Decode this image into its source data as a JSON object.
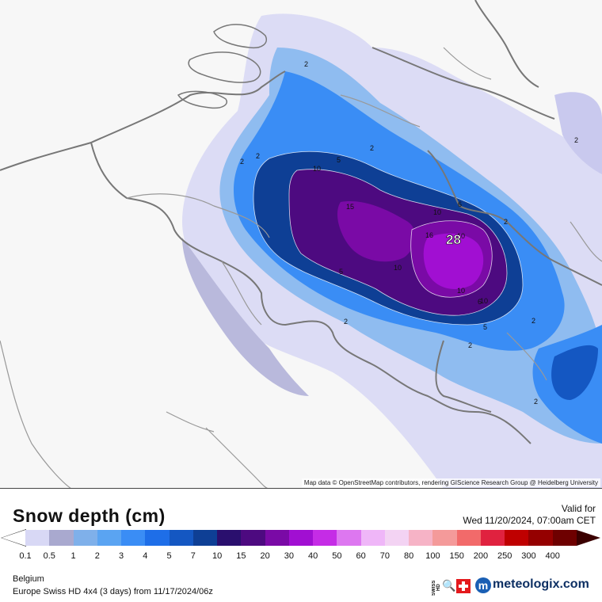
{
  "map": {
    "attribution": "Map data © OpenStreetMap contributors, rendering GIScience Research Group @ Heidelberg University",
    "max_label": "28",
    "contour_labels": [
      "2",
      "2",
      "2",
      "2",
      "5",
      "6",
      "10",
      "10",
      "5",
      "2",
      "10",
      "15",
      "10",
      "6",
      "2",
      "16",
      "10",
      "10",
      "5",
      "2",
      "2",
      "2",
      "2"
    ]
  },
  "legend": {
    "title": "Snow depth (cm)",
    "valid_label": "Valid for",
    "valid_time": "Wed 11/20/2024, 07:00am CET",
    "scale_values": [
      "0.1",
      "0.5",
      "1",
      "2",
      "3",
      "4",
      "5",
      "7",
      "10",
      "15",
      "20",
      "30",
      "40",
      "50",
      "60",
      "70",
      "80",
      "100",
      "150",
      "200",
      "250",
      "300",
      "400"
    ],
    "scale_colors": [
      "#d8d8f5",
      "#a9a9cf",
      "#7fb0ea",
      "#5aa4f2",
      "#3a8df5",
      "#1e6ee8",
      "#1457c2",
      "#0e3f95",
      "#2a0f6e",
      "#4d0a80",
      "#7a0aa6",
      "#a10fd2",
      "#c52ce6",
      "#dd77f0",
      "#efb6f8",
      "#f3d3f3",
      "#f6b3c6",
      "#f49a9a",
      "#f26a6a",
      "#e0223f",
      "#bf0000",
      "#950000",
      "#6e0000"
    ],
    "scale_end_color": "#3b0000"
  },
  "footer": {
    "region": "Belgium",
    "model": "Europe Swiss HD 4x4 (3 days) from  11/17/2024/06z",
    "brand_swiss": "SWISS HD",
    "brand": "meteologix.com"
  }
}
